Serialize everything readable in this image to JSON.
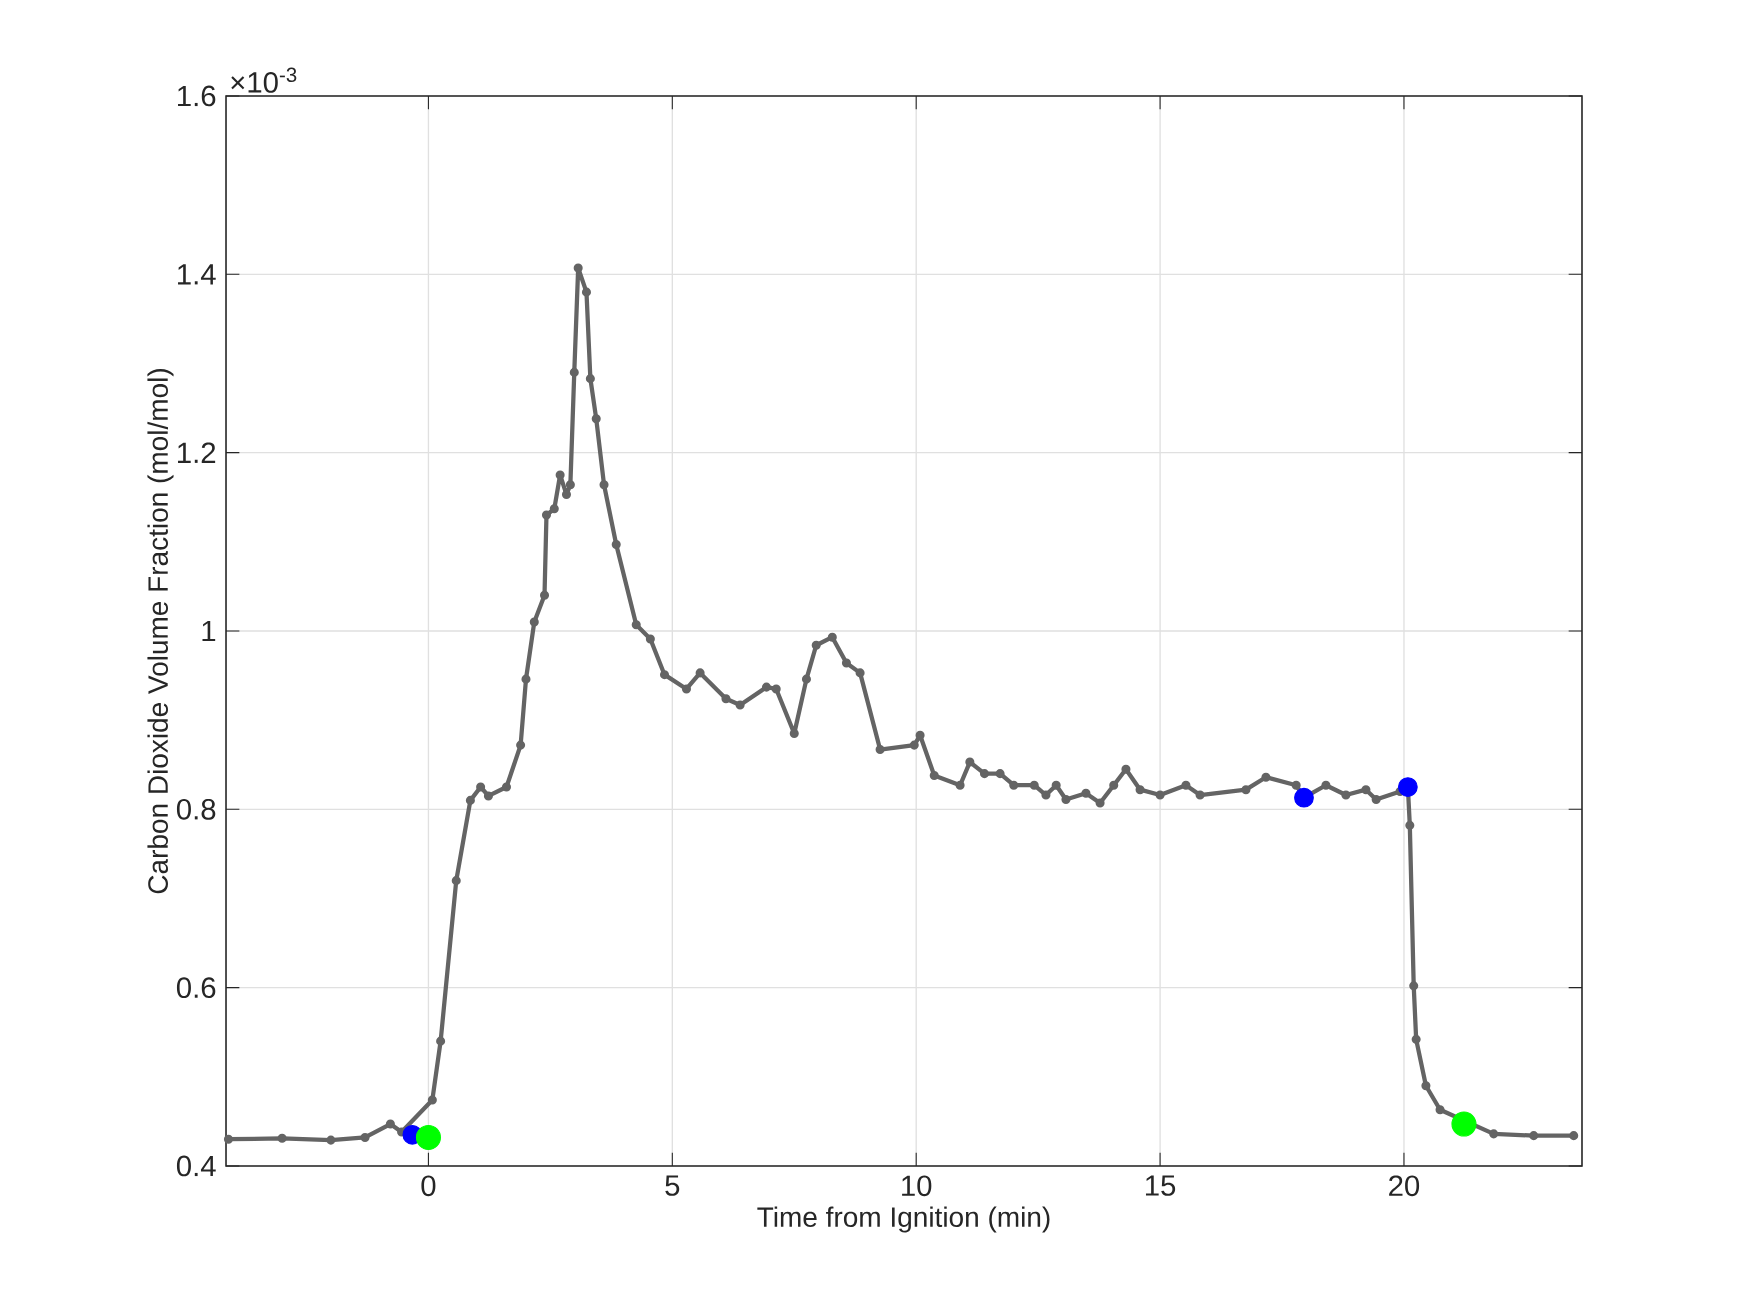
{
  "chart_data": {
    "type": "line",
    "xlabel": "Time from Ignition (min)",
    "ylabel": "Carbon Dioxide Volume Fraction (mol/mol)",
    "annotations": [
      "×10$^{-3}$"
    ],
    "xlim": [
      -4.15,
      23.65
    ],
    "xticks": [
      0,
      5,
      10,
      15,
      20
    ],
    "ylim": [
      0.4,
      1.6
    ],
    "yticks": [
      0.4,
      0.6,
      0.8,
      1,
      1.2,
      1.4,
      1.6
    ],
    "grid": true,
    "marker": "circle",
    "line_style": "solid",
    "series": [
      {
        "color": "#646464",
        "x": [
          -4.1,
          -3.0,
          -2.0,
          -1.3,
          -0.78,
          -0.55,
          0.08,
          0.25,
          0.57,
          0.86,
          1.07,
          1.23,
          1.6,
          1.89,
          2.0,
          2.17,
          2.38,
          2.42,
          2.58,
          2.7,
          2.83,
          2.91,
          2.99,
          3.07,
          3.24,
          3.32,
          3.44,
          3.6,
          3.85,
          4.26,
          4.55,
          4.84,
          5.29,
          5.57,
          6.1,
          6.39,
          6.93,
          7.13,
          7.5,
          7.75,
          7.95,
          8.28,
          8.57,
          8.85,
          9.26,
          9.96,
          10.08,
          10.37,
          10.9,
          11.1,
          11.4,
          11.72,
          12.0,
          12.42,
          12.66,
          12.87,
          13.07,
          13.48,
          13.77,
          14.05,
          14.3,
          14.59,
          15.0,
          15.53,
          15.82,
          16.76,
          17.17,
          17.79,
          17.95,
          18.4,
          18.81,
          19.22,
          19.43,
          19.92,
          20.08,
          20.12,
          20.2,
          20.25,
          20.45,
          20.74,
          21.84,
          22.66,
          23.48
        ],
        "values": [
          0.43,
          0.431,
          0.429,
          0.432,
          0.447,
          0.438,
          0.474,
          0.54,
          0.72,
          0.81,
          0.825,
          0.815,
          0.825,
          0.872,
          0.946,
          1.01,
          1.04,
          1.13,
          1.137,
          1.175,
          1.153,
          1.164,
          1.29,
          1.407,
          1.38,
          1.283,
          1.238,
          1.164,
          1.097,
          1.007,
          0.991,
          0.951,
          0.935,
          0.953,
          0.924,
          0.917,
          0.937,
          0.935,
          0.885,
          0.946,
          0.984,
          0.993,
          0.964,
          0.953,
          0.867,
          0.872,
          0.883,
          0.838,
          0.827,
          0.853,
          0.84,
          0.84,
          0.827,
          0.827,
          0.816,
          0.827,
          0.811,
          0.818,
          0.807,
          0.827,
          0.845,
          0.822,
          0.816,
          0.827,
          0.816,
          0.822,
          0.836,
          0.827,
          0.813,
          0.827,
          0.816,
          0.822,
          0.811,
          0.82,
          0.825,
          0.782,
          0.602,
          0.542,
          0.49,
          0.463,
          0.436,
          0.434,
          0.434
        ]
      },
      {
        "type": "scatter",
        "color": "#0000ff",
        "x": [
          -0.33,
          17.95,
          20.08
        ],
        "values": [
          0.435,
          0.813,
          0.825
        ]
      },
      {
        "type": "scatter",
        "color": "#00ff00",
        "x": [
          0.0,
          21.23
        ],
        "values": [
          0.432,
          0.447
        ]
      }
    ]
  }
}
